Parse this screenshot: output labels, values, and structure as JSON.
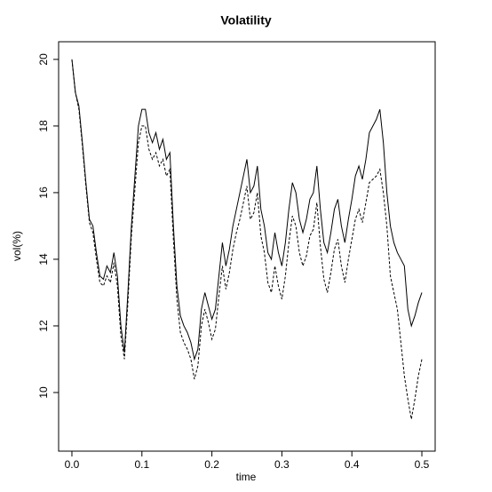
{
  "chart_data": {
    "type": "line",
    "title": "Volatility",
    "xlabel": "time",
    "ylabel": "vol(%)",
    "x": [
      0,
      0.005,
      0.01,
      0.015,
      0.02,
      0.025,
      0.03,
      0.035,
      0.04,
      0.045,
      0.05,
      0.055,
      0.06,
      0.065,
      0.07,
      0.075,
      0.08,
      0.085,
      0.09,
      0.095,
      0.1,
      0.105,
      0.11,
      0.115,
      0.12,
      0.125,
      0.13,
      0.135,
      0.14,
      0.145,
      0.15,
      0.155,
      0.16,
      0.165,
      0.17,
      0.175,
      0.18,
      0.185,
      0.19,
      0.195,
      0.2,
      0.205,
      0.21,
      0.215,
      0.22,
      0.225,
      0.23,
      0.235,
      0.24,
      0.245,
      0.25,
      0.255,
      0.26,
      0.265,
      0.27,
      0.275,
      0.28,
      0.285,
      0.29,
      0.295,
      0.3,
      0.305,
      0.31,
      0.315,
      0.32,
      0.325,
      0.33,
      0.335,
      0.34,
      0.345,
      0.35,
      0.355,
      0.36,
      0.365,
      0.37,
      0.375,
      0.38,
      0.385,
      0.39,
      0.395,
      0.4,
      0.405,
      0.41,
      0.415,
      0.42,
      0.425,
      0.43,
      0.435,
      0.44,
      0.445,
      0.45,
      0.455,
      0.46,
      0.465,
      0.47,
      0.475,
      0.48,
      0.485,
      0.49,
      0.495,
      0.5
    ],
    "series": [
      {
        "color": "#000000",
        "linestyle": "solid",
        "values": [
          20,
          19,
          18.6,
          17.5,
          16.3,
          15.2,
          15.0,
          14.2,
          13.5,
          13.4,
          13.8,
          13.6,
          14.2,
          13.5,
          12.0,
          11.2,
          13.0,
          15.0,
          16.5,
          18.0,
          18.5,
          18.5,
          17.8,
          17.5,
          17.8,
          17.3,
          17.6,
          17.0,
          17.2,
          15.0,
          13.2,
          12.3,
          12.0,
          11.8,
          11.5,
          11.0,
          11.3,
          12.5,
          13.0,
          12.6,
          12.2,
          12.5,
          13.5,
          14.5,
          13.8,
          14.3,
          15.0,
          15.5,
          16.0,
          16.5,
          17.0,
          16.0,
          16.2,
          16.8,
          15.5,
          15.0,
          14.2,
          14.0,
          14.8,
          14.2,
          13.8,
          14.5,
          15.5,
          16.3,
          16.0,
          15.2,
          14.8,
          15.2,
          15.8,
          16.0,
          16.8,
          15.5,
          14.5,
          14.2,
          14.8,
          15.5,
          15.8,
          15.0,
          14.5,
          15.2,
          15.8,
          16.5,
          16.8,
          16.4,
          17.0,
          17.8,
          18.0,
          18.2,
          18.5,
          17.5,
          16.0,
          15.0,
          14.5,
          14.2,
          14.0,
          13.8,
          12.5,
          12.0,
          12.3,
          12.7,
          13.0
        ]
      },
      {
        "color": "#000000",
        "linestyle": "dashed",
        "values": [
          20,
          19,
          18.5,
          17.4,
          16.2,
          15.1,
          14.8,
          14.0,
          13.3,
          13.2,
          13.5,
          13.3,
          13.9,
          13.2,
          11.7,
          11.0,
          12.7,
          14.7,
          16.1,
          17.5,
          18.0,
          18.0,
          17.3,
          17.0,
          17.2,
          16.8,
          17.0,
          16.5,
          16.7,
          14.6,
          12.8,
          11.8,
          11.5,
          11.3,
          11.0,
          10.4,
          10.8,
          12.0,
          12.5,
          12.1,
          11.6,
          11.9,
          12.9,
          13.8,
          13.1,
          13.6,
          14.3,
          14.8,
          15.2,
          15.7,
          16.2,
          15.2,
          15.4,
          16.0,
          14.7,
          14.2,
          13.3,
          13.0,
          13.8,
          13.2,
          12.8,
          13.5,
          14.5,
          15.3,
          15.0,
          14.2,
          13.8,
          14.1,
          14.7,
          14.9,
          15.7,
          14.4,
          13.4,
          13.0,
          13.6,
          14.3,
          14.6,
          13.8,
          13.3,
          14.0,
          14.6,
          15.2,
          15.5,
          15.1,
          15.7,
          16.3,
          16.4,
          16.5,
          16.7,
          16.0,
          15.0,
          13.5,
          13.0,
          12.5,
          11.5,
          10.5,
          9.8,
          9.2,
          9.8,
          10.5,
          11.0
        ]
      }
    ],
    "xlim": [
      -0.019,
      0.519
    ],
    "ylim": [
      8.24,
      20.53
    ],
    "xticks": [
      {
        "value": 0,
        "label": "0.0"
      },
      0.1,
      0.2,
      0.3,
      0.4,
      0.5
    ],
    "yticks": [
      10,
      12,
      14,
      16,
      18,
      20
    ],
    "grid": false
  }
}
